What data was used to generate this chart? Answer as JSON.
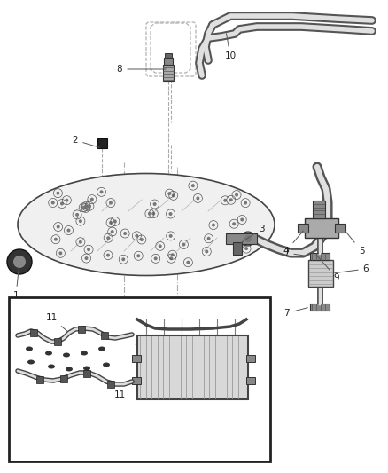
{
  "background_color": "#ffffff",
  "fig_width": 4.38,
  "fig_height": 5.33,
  "dpi": 100,
  "line_color": "#1a1a1a",
  "gray_light": "#cccccc",
  "gray_mid": "#888888",
  "gray_dark": "#444444",
  "dashed_color": "#aaaaaa",
  "label_color": "#222222",
  "label_fontsize": 7.5,
  "engine_block_color": "#e0e0e0",
  "engine_stroke_color": "#333333",
  "hose_outer": "#555555",
  "hose_inner": "#e8e8e8",
  "inset_border": "#111111",
  "annotation_line_color": "#555555"
}
